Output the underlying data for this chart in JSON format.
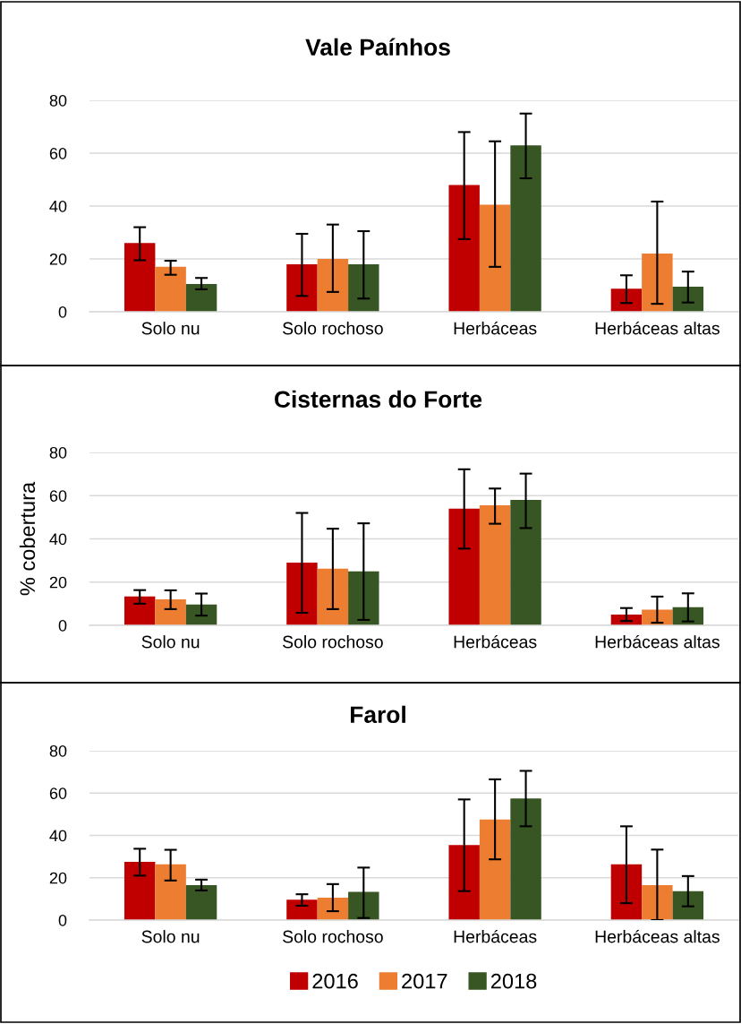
{
  "chart_data": [
    {
      "type": "bar",
      "title": "Vale Paínhos",
      "categories": [
        "Solo nu",
        "Solo rochoso",
        "Herbáceas",
        "Herbáceas altas"
      ],
      "ylim": [
        0,
        80
      ],
      "yticks": [
        0,
        20,
        40,
        60,
        80
      ],
      "grid": "y",
      "legend": false,
      "series": [
        {
          "color": "#c00000",
          "values": [
            26,
            18,
            48,
            8.7
          ],
          "errors": [
            [
              19.5,
              32
            ],
            [
              6,
              29.5
            ],
            [
              27.5,
              68
            ],
            [
              3.3,
              13.8
            ]
          ]
        },
        {
          "color": "#ed7d31",
          "values": [
            17,
            20,
            40.5,
            22
          ],
          "errors": [
            [
              14,
              19.3
            ],
            [
              7.5,
              33
            ],
            [
              17,
              64.5
            ],
            [
              3,
              41.7
            ]
          ]
        },
        {
          "color": "#375623",
          "values": [
            10.5,
            18,
            63,
            9.5
          ],
          "errors": [
            [
              8.5,
              12.8
            ],
            [
              5,
              30.5
            ],
            [
              50.5,
              75
            ],
            [
              3.5,
              15.2
            ]
          ]
        }
      ]
    },
    {
      "type": "bar",
      "title": "Cisternas do Forte",
      "ylabel": "% cobertura",
      "categories": [
        "Solo nu",
        "Solo rochoso",
        "Herbáceas",
        "Herbáceas altas"
      ],
      "ylim": [
        0,
        80
      ],
      "yticks": [
        0,
        20,
        40,
        60,
        80
      ],
      "grid": "y",
      "legend": false,
      "series": [
        {
          "color": "#c00000",
          "values": [
            13.4,
            29,
            54,
            5
          ],
          "errors": [
            [
              10,
              16.3
            ],
            [
              5.8,
              52
            ],
            [
              35.5,
              72.2
            ],
            [
              2,
              8
            ]
          ]
        },
        {
          "color": "#ed7d31",
          "values": [
            12,
            26.2,
            55.5,
            7.3
          ],
          "errors": [
            [
              7.5,
              16.2
            ],
            [
              7.5,
              44.7
            ],
            [
              47,
              63.3
            ],
            [
              1.2,
              13.3
            ]
          ]
        },
        {
          "color": "#375623",
          "values": [
            9.6,
            25,
            58,
            8.4
          ],
          "errors": [
            [
              4.5,
              14.7
            ],
            [
              2.5,
              47.2
            ],
            [
              45,
              70.2
            ],
            [
              1.8,
              14.8
            ]
          ]
        }
      ]
    },
    {
      "type": "bar",
      "title": "Farol",
      "categories": [
        "Solo nu",
        "Solo rochoso",
        "Herbáceas",
        "Herbáceas altas"
      ],
      "ylim": [
        0,
        80
      ],
      "yticks": [
        0,
        20,
        40,
        60,
        80
      ],
      "grid": "y",
      "legend": "bottom",
      "series": [
        {
          "name": "2016",
          "color": "#c00000",
          "values": [
            27.5,
            9.6,
            35.5,
            26.4
          ],
          "errors": [
            [
              21,
              33.7
            ],
            [
              6.8,
              12.2
            ],
            [
              13.7,
              57
            ],
            [
              8,
              44.3
            ]
          ]
        },
        {
          "name": "2017",
          "color": "#ed7d31",
          "values": [
            26.3,
            10.6,
            47.5,
            16.5
          ],
          "errors": [
            [
              18.7,
              33.2
            ],
            [
              4.2,
              17
            ],
            [
              28.7,
              66.5
            ],
            [
              0,
              33.3
            ]
          ]
        },
        {
          "name": "2018",
          "color": "#375623",
          "values": [
            16.5,
            13.3,
            57.5,
            13.7
          ],
          "errors": [
            [
              14,
              19.1
            ],
            [
              1,
              24.8
            ],
            [
              44.3,
              70.5
            ],
            [
              6.5,
              20.8
            ]
          ]
        }
      ]
    }
  ]
}
